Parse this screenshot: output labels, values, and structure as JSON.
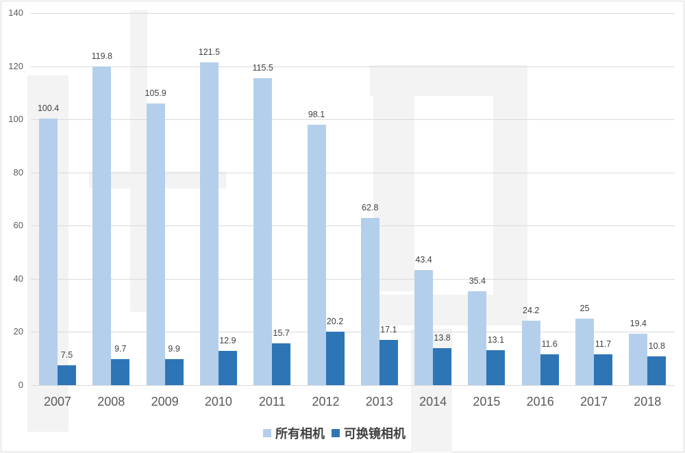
{
  "chart_data": {
    "type": "bar",
    "title": "",
    "xlabel": "",
    "ylabel": "",
    "ylim": [
      0,
      140
    ],
    "yticks": [
      0,
      20,
      40,
      60,
      80,
      100,
      120,
      140
    ],
    "grid": true,
    "legend_position": "bottom",
    "categories": [
      "2007",
      "2008",
      "2009",
      "2010",
      "2011",
      "2012",
      "2013",
      "2014",
      "2015",
      "2016",
      "2017",
      "2018"
    ],
    "series": [
      {
        "name": "所有相机",
        "color": "#b4cfeb",
        "values": [
          100.4,
          119.8,
          105.9,
          121.5,
          115.5,
          98.1,
          62.8,
          43.4,
          35.4,
          24.2,
          25,
          19.4
        ]
      },
      {
        "name": "可换镜相机",
        "color": "#2e75b6",
        "values": [
          7.5,
          9.7,
          9.9,
          12.9,
          15.7,
          20.2,
          17.1,
          13.8,
          13.1,
          11.6,
          11.7,
          10.8
        ]
      }
    ]
  },
  "legend": {
    "s0": "所有相机",
    "s1": "可换镜相机"
  }
}
